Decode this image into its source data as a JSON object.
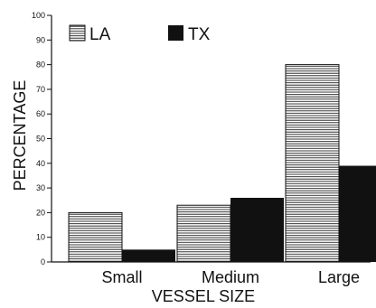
{
  "chart_data": {
    "type": "bar",
    "title": "",
    "xlabel": "VESSEL SIZE",
    "ylabel": "PERCENTAGE",
    "categories": [
      "Small",
      "Medium",
      "Large"
    ],
    "series": [
      {
        "name": "LA",
        "values": [
          20,
          23,
          80
        ],
        "color": "#ffffff",
        "pattern": "horizontal-stripes"
      },
      {
        "name": "TX",
        "values": [
          5,
          26,
          39
        ],
        "color": "#111111"
      }
    ],
    "ylim": [
      0,
      100
    ],
    "yticks": [
      0,
      10,
      20,
      30,
      40,
      50,
      60,
      70,
      80,
      90,
      100
    ],
    "legend_position": "top-left",
    "grid": false
  }
}
